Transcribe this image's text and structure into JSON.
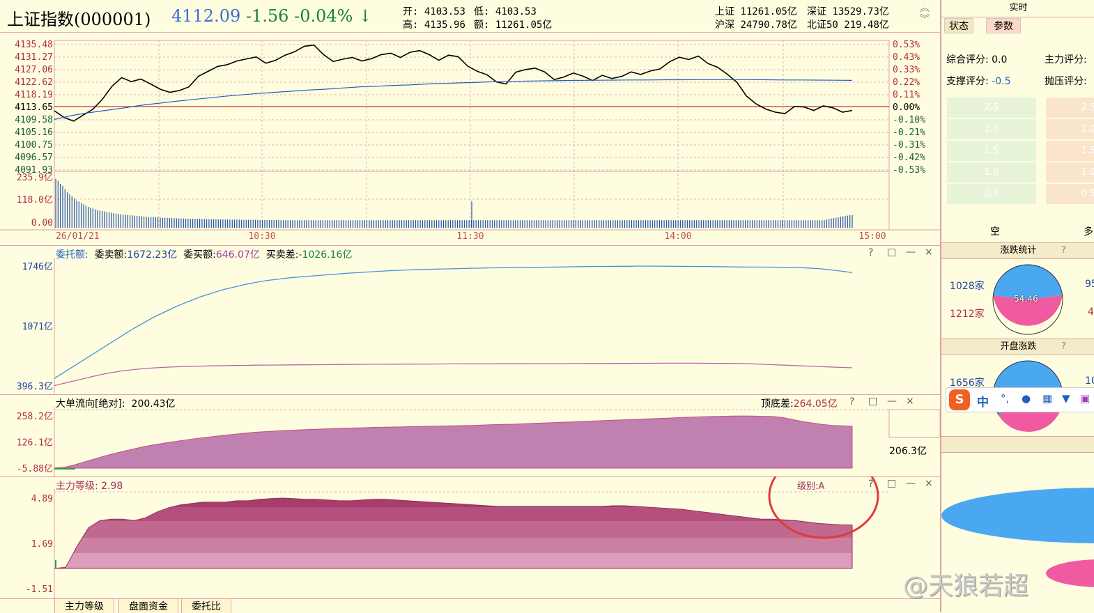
{
  "header": {
    "index_name": "上证指数(000001)",
    "price": "4112.09",
    "change": "-1.56",
    "change_pct": "-0.04%",
    "arrow": "↓",
    "open_label": "开:",
    "open_val": "4103.53",
    "low_label": "低:",
    "low_val": "4103.53",
    "high_label": "高:",
    "high_val": "4135.96",
    "amt_label": "额:",
    "amt_val": "11261.05亿",
    "sh_label": "上证",
    "sh_val": "11261.05亿",
    "sz_label": "深证",
    "sz_val": "13529.73亿",
    "hs_label": "沪深",
    "hs_val": "24790.78亿",
    "bz_label": "北证50",
    "bz_val": "219.48亿"
  },
  "price_chart": {
    "left_ticks": [
      "4135.48",
      "4131.27",
      "4127.06",
      "4122.62",
      "4118.19",
      "4113.65",
      "4109.58",
      "4105.16",
      "4100.75",
      "4096.57",
      "4091.93"
    ],
    "right_ticks": [
      "0.53%",
      "0.43%",
      "0.33%",
      "0.22%",
      "0.11%",
      "0.00%",
      "-0.10%",
      "-0.21%",
      "-0.31%",
      "-0.42%",
      "-0.53%"
    ],
    "vol_ticks": [
      "235.9亿",
      "118.0亿",
      "0.00"
    ],
    "time_labels": [
      "26/01/21",
      "10:30",
      "11:30",
      "14:00",
      "15:00"
    ],
    "price_series": [
      4112.5,
      4110.2,
      4108.9,
      4111.0,
      4113.0,
      4116.5,
      4121.0,
      4124.0,
      4122.6,
      4123.5,
      4121.8,
      4120.0,
      4118.9,
      4119.5,
      4120.8,
      4124.5,
      4126.2,
      4127.9,
      4128.5,
      4129.8,
      4130.5,
      4131.2,
      4129.0,
      4130.0,
      4131.8,
      4133.0,
      4134.9,
      4135.3,
      4132.0,
      4129.6,
      4130.4,
      4131.0,
      4129.8,
      4130.6,
      4132.0,
      4132.5,
      4131.0,
      4132.8,
      4133.4,
      4132.0,
      4130.0,
      4131.8,
      4131.3,
      4128.0,
      4126.2,
      4125.0,
      4122.5,
      4121.8,
      4125.9,
      4126.8,
      4127.3,
      4126.0,
      4123.3,
      4124.2,
      4125.6,
      4124.5,
      4123.0,
      4124.8,
      4123.7,
      4124.4,
      4126.0,
      4125.1,
      4126.3,
      4127.0,
      4129.5,
      4131.1,
      4130.3,
      4131.5,
      4128.9,
      4127.6,
      4125.2,
      4122.4,
      4117.6,
      4114.9,
      4113.1,
      4112.0,
      4111.5,
      4114.0,
      4113.8,
      4112.6,
      4114.2,
      4113.5,
      4112.0,
      4112.6
    ],
    "avg_series": [
      4109.5,
      4110.8,
      4111.8,
      4112.6,
      4113.4,
      4114.3,
      4115.0,
      4115.7,
      4116.3,
      4116.9,
      4117.5,
      4118.0,
      4118.5,
      4118.9,
      4119.3,
      4119.7,
      4120.0,
      4120.4,
      4120.8,
      4121.0,
      4121.3,
      4121.5,
      4121.8,
      4122.0,
      4122.2,
      4122.4,
      4122.6,
      4122.7,
      4122.8,
      4122.9,
      4123.0,
      4123.05,
      4123.1,
      4123.15,
      4123.2,
      4123.2,
      4123.25,
      4123.25,
      4123.3,
      4123.3,
      4123.3,
      4123.3,
      4123.25,
      4123.2,
      4123.2,
      4123.15,
      4123.1,
      4123.05
    ],
    "volume_series": [
      235,
      225,
      210,
      200,
      185,
      170,
      160,
      150,
      140,
      130,
      125,
      118,
      112,
      105,
      100,
      96,
      92,
      88,
      85,
      82,
      80,
      78,
      76,
      74,
      72,
      70,
      68,
      66,
      65,
      64,
      62,
      61,
      60,
      59,
      58,
      57,
      56,
      55,
      54,
      53,
      52,
      52,
      51,
      50,
      50,
      49,
      48,
      48,
      47,
      47,
      46,
      46,
      45,
      45,
      45,
      44,
      44,
      44,
      43,
      43,
      43,
      42,
      42,
      42,
      42,
      41,
      41,
      41,
      41,
      40,
      40,
      40,
      40,
      40,
      40,
      39,
      39,
      39,
      39,
      39,
      38,
      38,
      38,
      38,
      38,
      38,
      38,
      38,
      37,
      37,
      37,
      37,
      37,
      37,
      37,
      37,
      36,
      36,
      36,
      36,
      36,
      36,
      36,
      36,
      36,
      36,
      36,
      36,
      36,
      36,
      36,
      36,
      36,
      36,
      36,
      36,
      36,
      36,
      36,
      36,
      36,
      36,
      36,
      36,
      36,
      36,
      36,
      36,
      36,
      36,
      36,
      36,
      36,
      36,
      36,
      36,
      36,
      36,
      36,
      36,
      36,
      36,
      36,
      36,
      36,
      36,
      36,
      36,
      36,
      36,
      36,
      36,
      36,
      36,
      36,
      36,
      36,
      36,
      36,
      36,
      36,
      36,
      36,
      36,
      36,
      36,
      36,
      36,
      36,
      36,
      36,
      36,
      36,
      36,
      36,
      36,
      36,
      36,
      36,
      36,
      36,
      36,
      36,
      36,
      36,
      36,
      36,
      36,
      36,
      36,
      36,
      36,
      36,
      36,
      36,
      36,
      36,
      36,
      36,
      36,
      36,
      36,
      36,
      36,
      36,
      36,
      36,
      36,
      36,
      36,
      36,
      36,
      36,
      36,
      36,
      36,
      36,
      36,
      36,
      36,
      36,
      36,
      36,
      36,
      36,
      36,
      36,
      36,
      36,
      36,
      36,
      36,
      36,
      36,
      36,
      36,
      36,
      36,
      36,
      36,
      36,
      36,
      36,
      36,
      36,
      36,
      36,
      36,
      36,
      36,
      36,
      36,
      36,
      36,
      36,
      36,
      36,
      36,
      36,
      36,
      36,
      36,
      36,
      36,
      36,
      36,
      36,
      36,
      36,
      36,
      36,
      36,
      36,
      36,
      36,
      36,
      36,
      36,
      36,
      36,
      36,
      36,
      36,
      36,
      36,
      36,
      36,
      36,
      36,
      36,
      36,
      36,
      36,
      36,
      36,
      36,
      36,
      36,
      36,
      36,
      36,
      36,
      36,
      36,
      36,
      36,
      36,
      36,
      36,
      36,
      36,
      36,
      36,
      36,
      36,
      36,
      36,
      36,
      36,
      36,
      36,
      36,
      36,
      36,
      36,
      36,
      36,
      36,
      36,
      36,
      36,
      36,
      40,
      42,
      44,
      46,
      48,
      50,
      52,
      54,
      56,
      58,
      60,
      60
    ]
  },
  "order_panel": {
    "title": "委托额:",
    "sell_label": "委卖额:",
    "sell_val": "1672.23亿",
    "buy_label": "委买额:",
    "buy_val": "646.07亿",
    "diff_label": "买卖差:",
    "diff_val": "-1026.16亿",
    "ticks": [
      "1746亿",
      "1071亿",
      "396.3亿"
    ],
    "sell_series": [
      480,
      560,
      640,
      720,
      800,
      880,
      960,
      1040,
      1110,
      1180,
      1240,
      1300,
      1350,
      1400,
      1440,
      1480,
      1510,
      1540,
      1565,
      1585,
      1600,
      1615,
      1625,
      1635,
      1645,
      1655,
      1665,
      1672,
      1680,
      1688,
      1695,
      1700,
      1705,
      1708,
      1712,
      1715,
      1718,
      1722,
      1724,
      1726,
      1728,
      1730,
      1730,
      1732,
      1734,
      1736,
      1738,
      1740,
      1742,
      1742,
      1744,
      1744,
      1746,
      1746,
      1745,
      1744,
      1743,
      1742,
      1741,
      1740,
      1738,
      1736,
      1735,
      1735,
      1734,
      1732,
      1730,
      1725,
      1718,
      1705,
      1690,
      1672
    ],
    "buy_series": [
      400,
      430,
      460,
      490,
      520,
      545,
      565,
      580,
      592,
      600,
      607,
      612,
      616,
      619,
      622,
      624,
      626,
      628,
      630,
      631,
      632,
      633,
      634,
      635,
      636,
      637,
      638,
      639,
      640,
      640,
      641,
      642,
      642,
      643,
      643,
      644,
      644,
      645,
      645,
      645,
      646,
      646,
      646,
      647,
      647,
      647,
      648,
      648,
      649,
      649,
      650,
      650,
      651,
      651,
      652,
      652,
      652,
      652,
      651,
      650,
      650,
      648,
      645,
      640,
      635,
      630,
      625,
      620,
      615,
      610,
      605,
      600
    ]
  },
  "flow_panel": {
    "title": "大单流向[绝对]:",
    "title_val": "200.43亿",
    "spread_label": "顶底差:",
    "spread_val": "264.05亿",
    "ticks": [
      "258.2亿",
      "126.1亿",
      "-5.88亿"
    ],
    "side_value": "206.3亿",
    "series": [
      -5,
      -2,
      10,
      25,
      40,
      55,
      68,
      80,
      92,
      103,
      112,
      120,
      128,
      135,
      142,
      148,
      154,
      160,
      165,
      170,
      175,
      178,
      181,
      184,
      186,
      188,
      190,
      192,
      194,
      196,
      197,
      198,
      200,
      201,
      202,
      203,
      204,
      205,
      206,
      207,
      208,
      209,
      210,
      212,
      214,
      215,
      216,
      218,
      220,
      222,
      224,
      226,
      228,
      230,
      232,
      234,
      236,
      238,
      240,
      242,
      244,
      246,
      248,
      250,
      252,
      254,
      255,
      256,
      257,
      258,
      257,
      256,
      255,
      250,
      240,
      230,
      222,
      215,
      210,
      208,
      206
    ]
  },
  "level_panel": {
    "title": "主力等级:",
    "title_val": "2.98",
    "grade_label": "级别:A",
    "ticks": [
      "4.89",
      "1.69",
      "-1.51"
    ],
    "series": [
      -1.5,
      0.0,
      1.5,
      2.8,
      3.3,
      3.4,
      3.4,
      3.3,
      3.5,
      3.9,
      4.2,
      4.4,
      4.5,
      4.6,
      4.6,
      4.6,
      4.7,
      4.7,
      4.8,
      4.85,
      4.89,
      4.85,
      4.8,
      4.8,
      4.75,
      4.7,
      4.7,
      4.75,
      4.8,
      4.8,
      4.75,
      4.7,
      4.65,
      4.6,
      4.55,
      4.5,
      4.45,
      4.4,
      4.35,
      4.3,
      4.3,
      4.3,
      4.3,
      4.3,
      4.3,
      4.3,
      4.3,
      4.3,
      4.3,
      4.35,
      4.35,
      4.3,
      4.25,
      4.2,
      4.15,
      4.1,
      4.0,
      3.9,
      3.8,
      3.7,
      3.6,
      3.5,
      3.4,
      3.4,
      3.35,
      3.3,
      3.2,
      3.1,
      3.05,
      3.0,
      2.98
    ]
  },
  "tabs": [
    "主力等级",
    "盘面资金",
    "委托比"
  ],
  "panel_controls": [
    "?",
    "□",
    "—",
    "×"
  ],
  "sidebar": {
    "top_title": "实时",
    "tabs": [
      "状态",
      "参数"
    ],
    "score_label": "综合评分:",
    "score_val": "0.0",
    "main_label": "主力评分:",
    "support_label": "支撑评分:",
    "support_val": "-0.5",
    "pressure_label": "抛压评分:",
    "bar_labels": [
      "2.5",
      "2.0",
      "1.5",
      "1.0",
      "0.5"
    ],
    "short_label": "空",
    "long_label": "多",
    "updown_title": "涨跌统计",
    "up_count": "1028家",
    "down_count": "1212家",
    "ratio": "54:46",
    "up_right": "95",
    "down_right": "4",
    "open_title": "开盘涨跌",
    "open_up": "1656家",
    "open_right": "10",
    "ime_label": "中",
    "colors": {
      "up": "#4aa8f0",
      "down": "#f05aa0"
    }
  },
  "watermark": "@天狼若超"
}
